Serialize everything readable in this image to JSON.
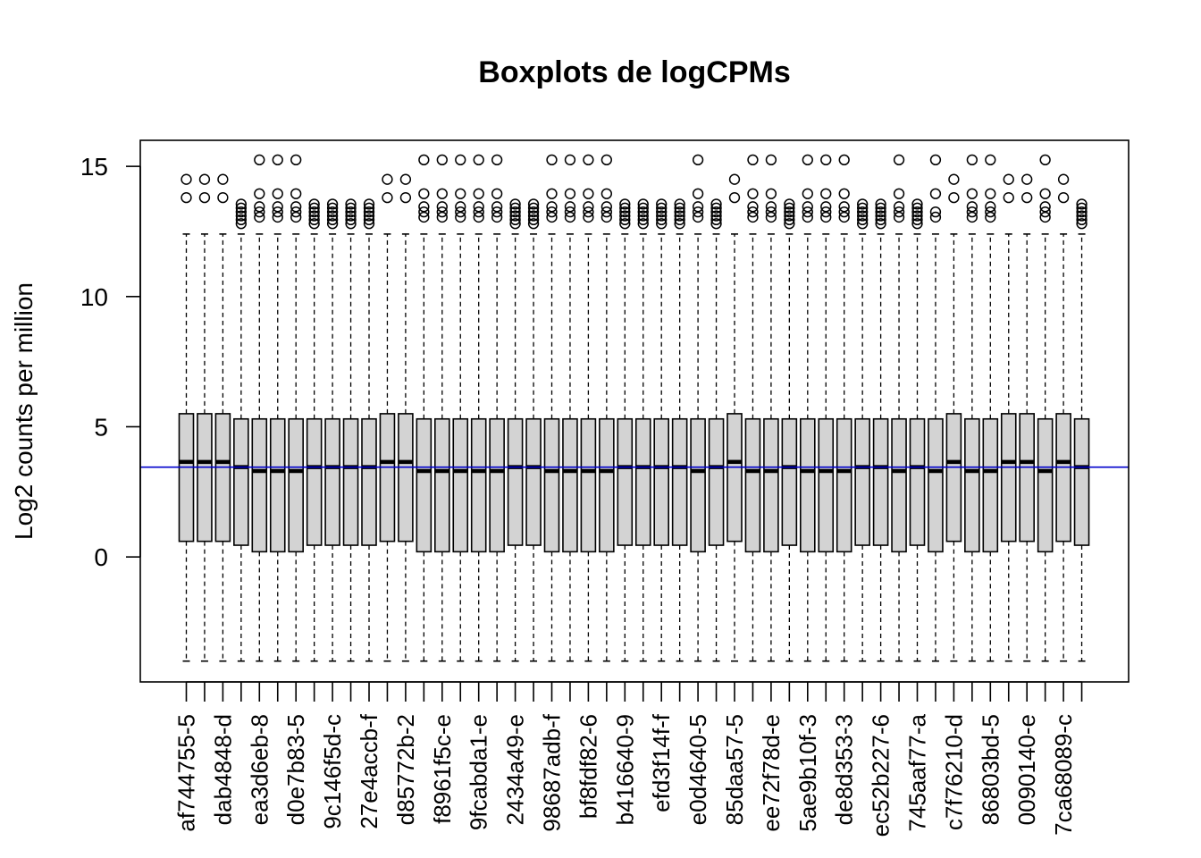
{
  "chart_data": {
    "type": "boxplot",
    "title": "Boxplots de logCPMs",
    "xlabel": "",
    "ylabel": "Log2 counts per million",
    "ylim": [
      -4.8,
      16.0
    ],
    "y_ticks": [
      0,
      5,
      10,
      15
    ],
    "grid": false,
    "reference_line": {
      "y": 3.45,
      "color": "#0000cc"
    },
    "colors": {
      "box_fill": "#d3d3d3",
      "stroke": "#000000"
    },
    "categories": [
      "af744755-5",
      "",
      "dab4848-d",
      "",
      "ea3d6eb-8",
      "",
      "d0e7b83-5",
      "",
      "9c146f5d-c",
      "",
      "27e4accb-f",
      "",
      "d85772b-2",
      "",
      "f8961f5c-e",
      "",
      "9fcabda1-e",
      "",
      "2434a49-e",
      "",
      "98687adb-f",
      "",
      "bf8fdf82-6",
      "",
      "b416640-9",
      "",
      "efd3f14f-f",
      "",
      "e0d4640-5",
      "",
      "85daa57-5",
      "",
      "ee72f78d-e",
      "",
      "5ae9b10f-3",
      "",
      "de8d353-3",
      "",
      "ec52b227-6",
      "",
      "745aaf77-a",
      "",
      "c7f76210-d",
      "",
      "86803bd-5",
      "",
      "0090140-e",
      "",
      "7ca68089-c",
      ""
    ],
    "series": [
      {
        "whisker_low": -4.0,
        "q1": 0.6,
        "median": 3.65,
        "q3": 5.5,
        "whisker_high": 12.4,
        "outliers": [
          13.8,
          14.5
        ]
      },
      {
        "whisker_low": -4.0,
        "q1": 0.6,
        "median": 3.65,
        "q3": 5.5,
        "whisker_high": 12.4,
        "outliers": [
          13.8,
          14.5
        ]
      },
      {
        "whisker_low": -4.0,
        "q1": 0.6,
        "median": 3.65,
        "q3": 5.5,
        "whisker_high": 12.4,
        "outliers": [
          13.8,
          14.5
        ]
      },
      {
        "whisker_low": -4.0,
        "q1": 0.45,
        "median": 3.45,
        "q3": 5.3,
        "whisker_high": 12.4,
        "outliers": [
          12.8,
          12.95,
          13.1,
          13.25,
          13.4,
          13.55
        ]
      },
      {
        "whisker_low": -4.0,
        "q1": 0.2,
        "median": 3.3,
        "q3": 5.3,
        "whisker_high": 12.4,
        "outliers": [
          13.05,
          13.25,
          13.45,
          13.95,
          15.25
        ]
      },
      {
        "whisker_low": -4.0,
        "q1": 0.2,
        "median": 3.3,
        "q3": 5.3,
        "whisker_high": 12.4,
        "outliers": [
          13.05,
          13.25,
          13.45,
          13.95,
          15.25
        ]
      },
      {
        "whisker_low": -4.0,
        "q1": 0.2,
        "median": 3.3,
        "q3": 5.3,
        "whisker_high": 12.4,
        "outliers": [
          13.05,
          13.25,
          13.45,
          13.95,
          15.25
        ]
      },
      {
        "whisker_low": -4.0,
        "q1": 0.45,
        "median": 3.45,
        "q3": 5.3,
        "whisker_high": 12.4,
        "outliers": [
          12.8,
          12.95,
          13.1,
          13.25,
          13.4,
          13.55
        ]
      },
      {
        "whisker_low": -4.0,
        "q1": 0.45,
        "median": 3.45,
        "q3": 5.3,
        "whisker_high": 12.4,
        "outliers": [
          12.8,
          12.95,
          13.1,
          13.25,
          13.4,
          13.55
        ]
      },
      {
        "whisker_low": -4.0,
        "q1": 0.45,
        "median": 3.45,
        "q3": 5.3,
        "whisker_high": 12.4,
        "outliers": [
          12.8,
          12.95,
          13.1,
          13.25,
          13.4,
          13.55
        ]
      },
      {
        "whisker_low": -4.0,
        "q1": 0.45,
        "median": 3.45,
        "q3": 5.3,
        "whisker_high": 12.4,
        "outliers": [
          12.8,
          12.95,
          13.1,
          13.25,
          13.4,
          13.55
        ]
      },
      {
        "whisker_low": -4.0,
        "q1": 0.6,
        "median": 3.65,
        "q3": 5.5,
        "whisker_high": 12.4,
        "outliers": [
          13.8,
          14.5
        ]
      },
      {
        "whisker_low": -4.0,
        "q1": 0.6,
        "median": 3.65,
        "q3": 5.5,
        "whisker_high": 12.4,
        "outliers": [
          13.8,
          14.5
        ]
      },
      {
        "whisker_low": -4.0,
        "q1": 0.2,
        "median": 3.3,
        "q3": 5.3,
        "whisker_high": 12.4,
        "outliers": [
          13.05,
          13.25,
          13.45,
          13.95,
          15.25
        ]
      },
      {
        "whisker_low": -4.0,
        "q1": 0.2,
        "median": 3.3,
        "q3": 5.3,
        "whisker_high": 12.4,
        "outliers": [
          13.05,
          13.25,
          13.45,
          13.95,
          15.25
        ]
      },
      {
        "whisker_low": -4.0,
        "q1": 0.2,
        "median": 3.3,
        "q3": 5.3,
        "whisker_high": 12.4,
        "outliers": [
          13.05,
          13.25,
          13.45,
          13.95,
          15.25
        ]
      },
      {
        "whisker_low": -4.0,
        "q1": 0.2,
        "median": 3.3,
        "q3": 5.3,
        "whisker_high": 12.4,
        "outliers": [
          13.05,
          13.25,
          13.45,
          13.95,
          15.25
        ]
      },
      {
        "whisker_low": -4.0,
        "q1": 0.2,
        "median": 3.3,
        "q3": 5.3,
        "whisker_high": 12.4,
        "outliers": [
          13.05,
          13.25,
          13.45,
          13.95,
          15.25
        ]
      },
      {
        "whisker_low": -4.0,
        "q1": 0.45,
        "median": 3.45,
        "q3": 5.3,
        "whisker_high": 12.4,
        "outliers": [
          12.8,
          12.95,
          13.1,
          13.25,
          13.4,
          13.55
        ]
      },
      {
        "whisker_low": -4.0,
        "q1": 0.45,
        "median": 3.45,
        "q3": 5.3,
        "whisker_high": 12.4,
        "outliers": [
          12.8,
          12.95,
          13.1,
          13.25,
          13.4,
          13.55
        ]
      },
      {
        "whisker_low": -4.0,
        "q1": 0.2,
        "median": 3.3,
        "q3": 5.3,
        "whisker_high": 12.4,
        "outliers": [
          13.05,
          13.25,
          13.45,
          13.95,
          15.25
        ]
      },
      {
        "whisker_low": -4.0,
        "q1": 0.2,
        "median": 3.3,
        "q3": 5.3,
        "whisker_high": 12.4,
        "outliers": [
          13.05,
          13.25,
          13.45,
          13.95,
          15.25
        ]
      },
      {
        "whisker_low": -4.0,
        "q1": 0.2,
        "median": 3.3,
        "q3": 5.3,
        "whisker_high": 12.4,
        "outliers": [
          13.05,
          13.25,
          13.45,
          13.95,
          15.25
        ]
      },
      {
        "whisker_low": -4.0,
        "q1": 0.2,
        "median": 3.3,
        "q3": 5.3,
        "whisker_high": 12.4,
        "outliers": [
          13.05,
          13.25,
          13.45,
          13.95,
          15.25
        ]
      },
      {
        "whisker_low": -4.0,
        "q1": 0.45,
        "median": 3.45,
        "q3": 5.3,
        "whisker_high": 12.4,
        "outliers": [
          12.8,
          12.95,
          13.1,
          13.25,
          13.4,
          13.55
        ]
      },
      {
        "whisker_low": -4.0,
        "q1": 0.45,
        "median": 3.45,
        "q3": 5.3,
        "whisker_high": 12.4,
        "outliers": [
          12.8,
          12.95,
          13.1,
          13.25,
          13.4,
          13.55
        ]
      },
      {
        "whisker_low": -4.0,
        "q1": 0.45,
        "median": 3.45,
        "q3": 5.3,
        "whisker_high": 12.4,
        "outliers": [
          12.8,
          12.95,
          13.1,
          13.25,
          13.4,
          13.55
        ]
      },
      {
        "whisker_low": -4.0,
        "q1": 0.45,
        "median": 3.45,
        "q3": 5.3,
        "whisker_high": 12.4,
        "outliers": [
          12.8,
          12.95,
          13.1,
          13.25,
          13.4,
          13.55
        ]
      },
      {
        "whisker_low": -4.0,
        "q1": 0.2,
        "median": 3.3,
        "q3": 5.3,
        "whisker_high": 12.4,
        "outliers": [
          13.05,
          13.25,
          13.45,
          13.95,
          15.25
        ]
      },
      {
        "whisker_low": -4.0,
        "q1": 0.45,
        "median": 3.45,
        "q3": 5.3,
        "whisker_high": 12.4,
        "outliers": [
          12.8,
          12.95,
          13.1,
          13.25,
          13.4,
          13.55
        ]
      },
      {
        "whisker_low": -4.0,
        "q1": 0.6,
        "median": 3.65,
        "q3": 5.5,
        "whisker_high": 12.4,
        "outliers": [
          13.8,
          14.5
        ]
      },
      {
        "whisker_low": -4.0,
        "q1": 0.2,
        "median": 3.3,
        "q3": 5.3,
        "whisker_high": 12.4,
        "outliers": [
          13.05,
          13.25,
          13.45,
          13.95,
          15.25
        ]
      },
      {
        "whisker_low": -4.0,
        "q1": 0.2,
        "median": 3.3,
        "q3": 5.3,
        "whisker_high": 12.4,
        "outliers": [
          13.05,
          13.25,
          13.45,
          13.95,
          15.25
        ]
      },
      {
        "whisker_low": -4.0,
        "q1": 0.45,
        "median": 3.45,
        "q3": 5.3,
        "whisker_high": 12.4,
        "outliers": [
          12.8,
          12.95,
          13.1,
          13.25,
          13.4,
          13.55
        ]
      },
      {
        "whisker_low": -4.0,
        "q1": 0.2,
        "median": 3.3,
        "q3": 5.3,
        "whisker_high": 12.4,
        "outliers": [
          13.05,
          13.25,
          13.45,
          13.95,
          15.25
        ]
      },
      {
        "whisker_low": -4.0,
        "q1": 0.2,
        "median": 3.3,
        "q3": 5.3,
        "whisker_high": 12.4,
        "outliers": [
          13.05,
          13.25,
          13.45,
          13.95,
          15.25
        ]
      },
      {
        "whisker_low": -4.0,
        "q1": 0.2,
        "median": 3.3,
        "q3": 5.3,
        "whisker_high": 12.4,
        "outliers": [
          13.05,
          13.25,
          13.45,
          13.95,
          15.25
        ]
      },
      {
        "whisker_low": -4.0,
        "q1": 0.45,
        "median": 3.45,
        "q3": 5.3,
        "whisker_high": 12.4,
        "outliers": [
          12.8,
          12.95,
          13.1,
          13.25,
          13.4,
          13.55
        ]
      },
      {
        "whisker_low": -4.0,
        "q1": 0.45,
        "median": 3.45,
        "q3": 5.3,
        "whisker_high": 12.4,
        "outliers": [
          12.8,
          12.95,
          13.1,
          13.25,
          13.4,
          13.55
        ]
      },
      {
        "whisker_low": -4.0,
        "q1": 0.2,
        "median": 3.3,
        "q3": 5.3,
        "whisker_high": 12.4,
        "outliers": [
          13.05,
          13.25,
          13.45,
          13.95,
          15.25
        ]
      },
      {
        "whisker_low": -4.0,
        "q1": 0.45,
        "median": 3.45,
        "q3": 5.3,
        "whisker_high": 12.4,
        "outliers": [
          12.8,
          12.95,
          13.1,
          13.25,
          13.4,
          13.55
        ]
      },
      {
        "whisker_low": -4.0,
        "q1": 0.2,
        "median": 3.3,
        "q3": 5.3,
        "whisker_high": 12.4,
        "outliers": [
          13.05,
          13.25,
          13.95,
          15.25
        ]
      },
      {
        "whisker_low": -4.0,
        "q1": 0.6,
        "median": 3.65,
        "q3": 5.5,
        "whisker_high": 12.4,
        "outliers": [
          13.8,
          14.5
        ]
      },
      {
        "whisker_low": -4.0,
        "q1": 0.2,
        "median": 3.3,
        "q3": 5.3,
        "whisker_high": 12.4,
        "outliers": [
          13.05,
          13.25,
          13.45,
          13.95,
          15.25
        ]
      },
      {
        "whisker_low": -4.0,
        "q1": 0.2,
        "median": 3.3,
        "q3": 5.3,
        "whisker_high": 12.4,
        "outliers": [
          13.05,
          13.25,
          13.45,
          13.95,
          15.25
        ]
      },
      {
        "whisker_low": -4.0,
        "q1": 0.6,
        "median": 3.65,
        "q3": 5.5,
        "whisker_high": 12.4,
        "outliers": [
          13.8,
          14.5
        ]
      },
      {
        "whisker_low": -4.0,
        "q1": 0.6,
        "median": 3.65,
        "q3": 5.5,
        "whisker_high": 12.4,
        "outliers": [
          13.8,
          14.5
        ]
      },
      {
        "whisker_low": -4.0,
        "q1": 0.2,
        "median": 3.3,
        "q3": 5.3,
        "whisker_high": 12.4,
        "outliers": [
          13.05,
          13.25,
          13.45,
          13.95,
          15.25
        ]
      },
      {
        "whisker_low": -4.0,
        "q1": 0.6,
        "median": 3.65,
        "q3": 5.5,
        "whisker_high": 12.4,
        "outliers": [
          13.8,
          14.5
        ]
      },
      {
        "whisker_low": -4.0,
        "q1": 0.45,
        "median": 3.45,
        "q3": 5.3,
        "whisker_high": 12.4,
        "outliers": [
          12.8,
          12.95,
          13.1,
          13.25,
          13.4,
          13.55
        ]
      }
    ]
  }
}
